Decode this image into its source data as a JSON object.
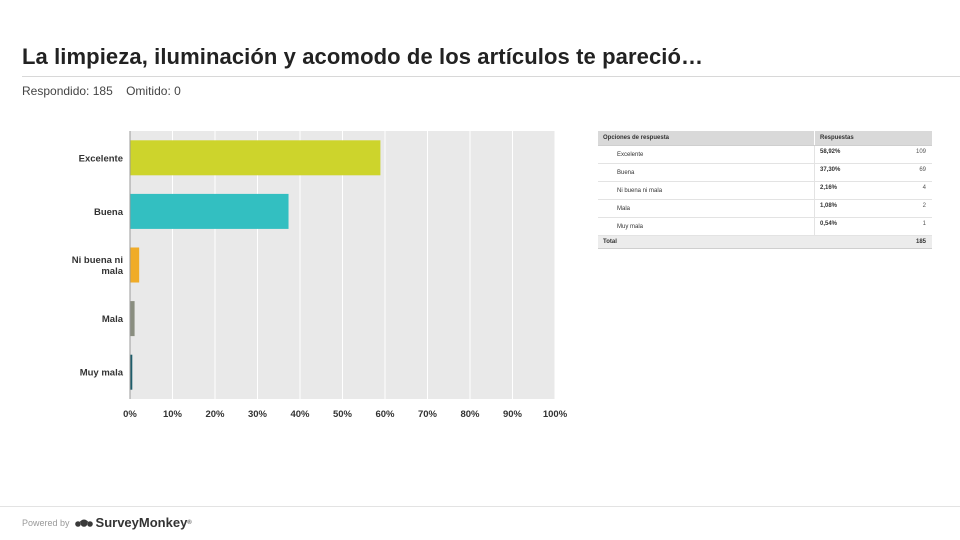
{
  "title": "La limpieza, iluminación y acomodo de los artículos te pareció…",
  "stats": {
    "answered": "Respondido: 185",
    "skipped": "Omitido: 0"
  },
  "chart_data": {
    "type": "bar",
    "orientation": "horizontal",
    "categories": [
      "Excelente",
      "Buena",
      "Ni buena ni mala",
      "Mala",
      "Muy mala"
    ],
    "values": [
      58.92,
      37.3,
      2.16,
      1.08,
      0.54
    ],
    "xlim": [
      0,
      100
    ],
    "x_ticks": [
      "0%",
      "10%",
      "20%",
      "30%",
      "40%",
      "50%",
      "60%",
      "70%",
      "80%",
      "90%",
      "100%"
    ],
    "colors": [
      "#cdd42c",
      "#33bfc1",
      "#f0ac28",
      "#8a8e80",
      "#1e5d6b"
    ],
    "grid": true,
    "plot_background": "#e9e9e9"
  },
  "table": {
    "header": {
      "option": "Opciones de respuesta",
      "responses": "Respuestas"
    },
    "rows": [
      {
        "option": "Excelente",
        "percent": "58,92%",
        "count": "109"
      },
      {
        "option": "Buena",
        "percent": "37,30%",
        "count": "69"
      },
      {
        "option": "Ni buena ni mala",
        "percent": "2,16%",
        "count": "4"
      },
      {
        "option": "Mala",
        "percent": "1,08%",
        "count": "2"
      },
      {
        "option": "Muy mala",
        "percent": "0,54%",
        "count": "1"
      }
    ],
    "total": {
      "label": "Total",
      "value": "185"
    }
  },
  "footer": {
    "powered": "Powered by",
    "brand": "SurveyMonkey",
    "trademark": "®"
  },
  "icons": {
    "brand_logo": "surveymonkey-logo-icon"
  }
}
